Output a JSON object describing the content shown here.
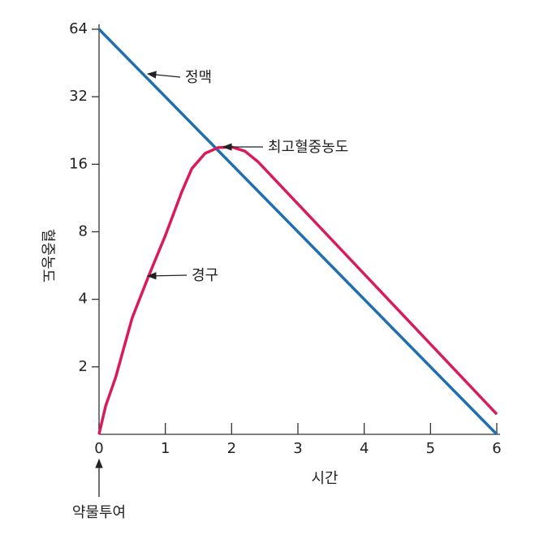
{
  "chart_data": {
    "type": "line",
    "x_label": "시간",
    "y_label": "혈중농도",
    "y_scale": "log2",
    "xlim": [
      0,
      6
    ],
    "xticks": [
      0,
      1,
      2,
      3,
      4,
      5,
      6
    ],
    "ylim": [
      1,
      64
    ],
    "yticks": [
      2,
      4,
      8,
      16,
      32,
      64
    ],
    "series": [
      {
        "name": "정맥",
        "color": "#1f6fb0",
        "x": [
          0,
          6
        ],
        "values": [
          64,
          1
        ]
      },
      {
        "name": "경구",
        "color": "#d81b5a",
        "x": [
          0,
          0.1,
          0.25,
          0.5,
          0.75,
          1.0,
          1.25,
          1.4,
          1.6,
          1.8,
          2.0,
          2.2,
          2.4,
          6
        ],
        "values": [
          1,
          1.34,
          1.79,
          3.3,
          5.1,
          7.7,
          12.1,
          15.3,
          17.9,
          19,
          19.1,
          18.3,
          16.4,
          1.23
        ]
      }
    ],
    "annotations": [
      "최고혈중농도",
      "약물투여"
    ]
  }
}
